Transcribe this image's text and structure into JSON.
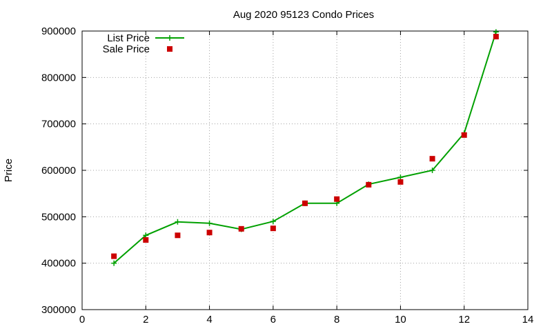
{
  "chart_data": {
    "type": "line",
    "title": "Aug 2020 95123 Condo Prices",
    "xlabel": "",
    "ylabel": "Price",
    "xlim": [
      0,
      14
    ],
    "ylim": [
      300000,
      900000
    ],
    "xticks": [
      "0",
      "2",
      "4",
      "6",
      "8",
      "10",
      "12",
      "14"
    ],
    "yticks": [
      "300000",
      "400000",
      "500000",
      "600000",
      "700000",
      "800000",
      "900000"
    ],
    "grid": true,
    "legend_position": "top-left",
    "x": [
      1,
      2,
      3,
      4,
      5,
      6,
      7,
      8,
      9,
      10,
      11,
      12,
      13
    ],
    "series": [
      {
        "name": "List Price",
        "style": "line-with-plus-markers",
        "color": "#00a000",
        "values": [
          400000,
          460000,
          489000,
          486000,
          473000,
          490000,
          529000,
          529000,
          570000,
          585000,
          600000,
          680000,
          898000
        ]
      },
      {
        "name": "Sale Price",
        "style": "square-markers",
        "color": "#cc0000",
        "values": [
          415000,
          450000,
          460000,
          466000,
          474000,
          475000,
          529000,
          538000,
          569000,
          575000,
          625000,
          676000,
          888000
        ]
      }
    ]
  }
}
